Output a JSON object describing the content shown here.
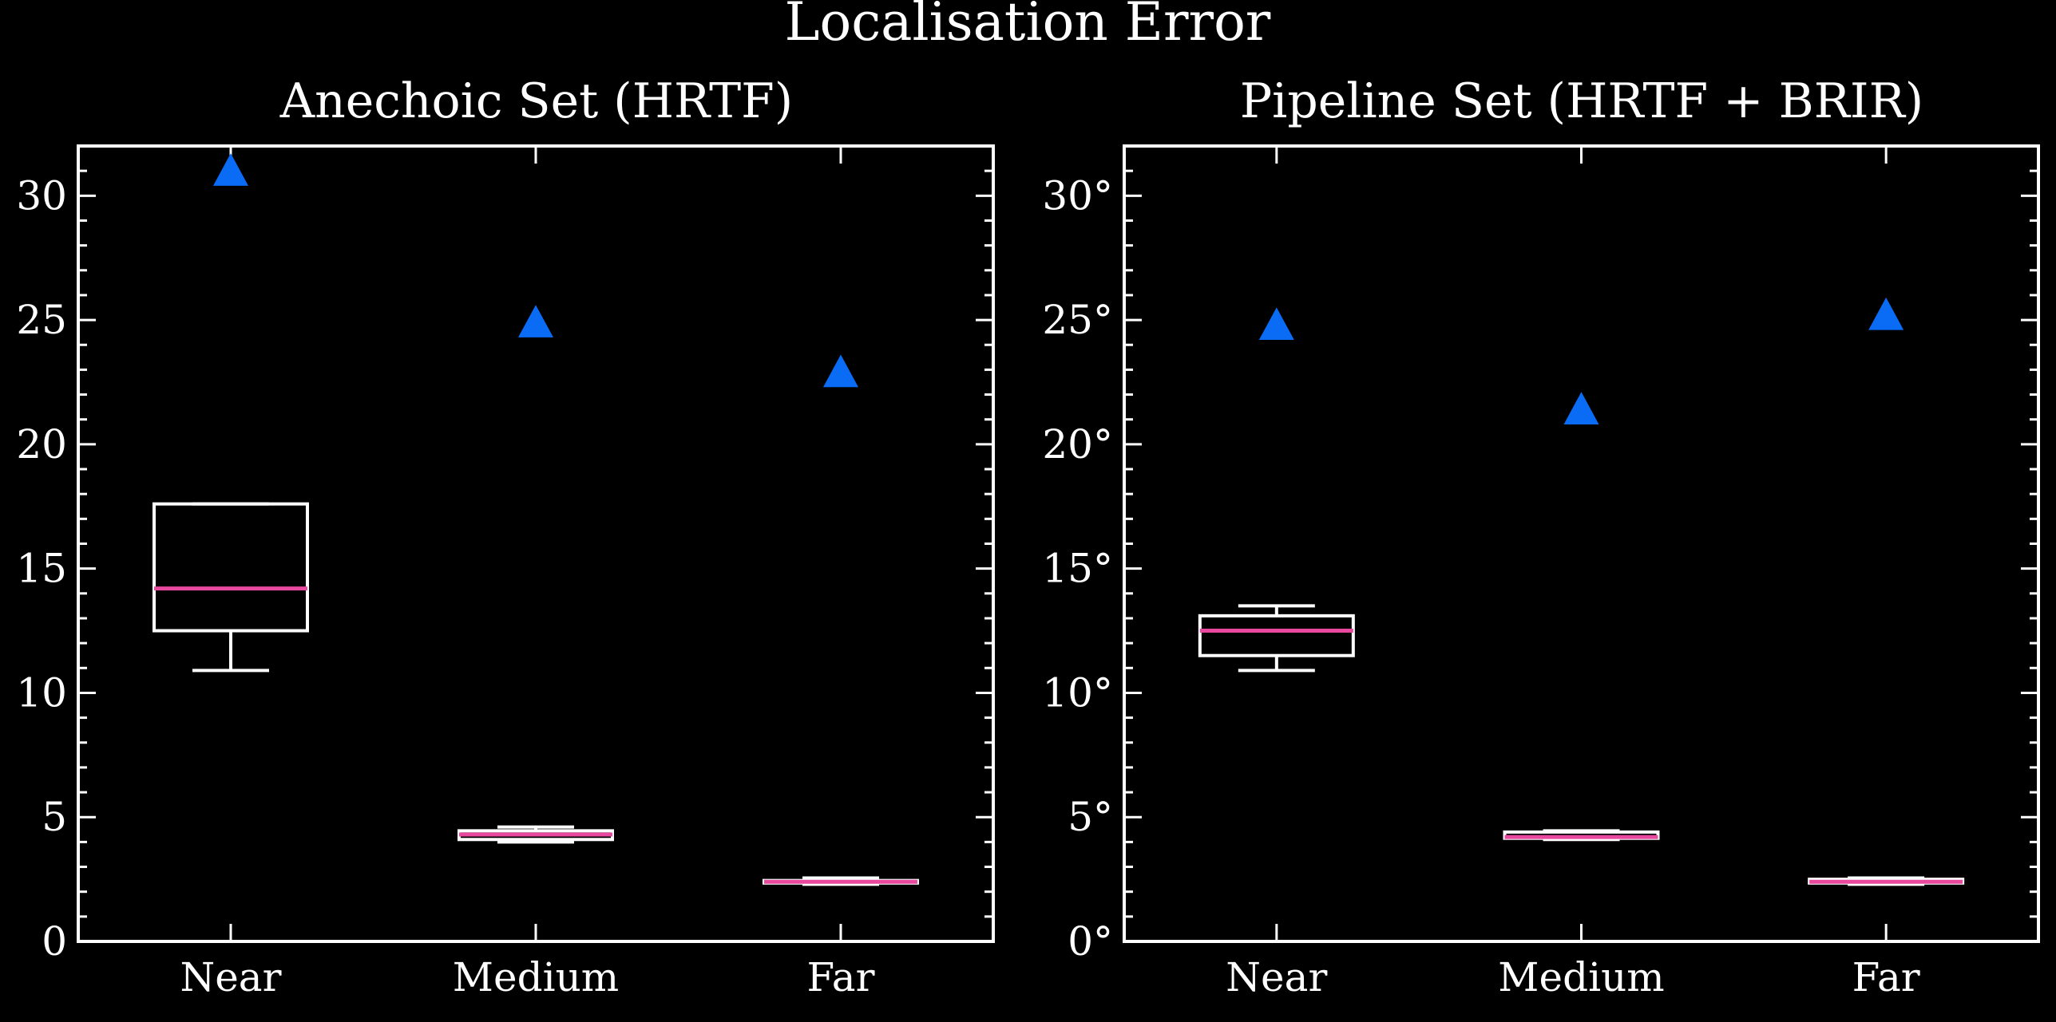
{
  "figure": {
    "title": "Localisation Error",
    "background": "#000000",
    "foreground": "#ffffff",
    "median_color": "#e8489e",
    "marker_color": "#0a6cf5"
  },
  "chart_data": [
    {
      "type": "box",
      "title": "Anechoic Set (HRTF)",
      "xlabel": "",
      "ylabel": "",
      "categories": [
        "Near",
        "Medium",
        "Far"
      ],
      "ylim": [
        0,
        32
      ],
      "yticks": [
        0,
        5,
        10,
        15,
        20,
        25,
        30
      ],
      "ytick_labels": [
        "0",
        "5",
        "10",
        "15",
        "20",
        "25",
        "30"
      ],
      "boxes": [
        {
          "whisker_low": 10.9,
          "q1": 12.5,
          "median": 14.2,
          "q3": 17.6,
          "whisker_high": 17.6
        },
        {
          "whisker_low": 4.0,
          "q1": 4.1,
          "median": 4.3,
          "q3": 4.45,
          "whisker_high": 4.6
        },
        {
          "whisker_low": 2.3,
          "q1": 2.35,
          "median": 2.4,
          "q3": 2.45,
          "whisker_high": 2.55
        }
      ],
      "markers": {
        "shape": "triangle",
        "values": [
          31.0,
          24.9,
          22.9
        ]
      },
      "grid": false
    },
    {
      "type": "box",
      "title": "Pipeline Set (HRTF + BRIR)",
      "xlabel": "",
      "ylabel": "",
      "categories": [
        "Near",
        "Medium",
        "Far"
      ],
      "ylim": [
        0,
        32
      ],
      "yticks": [
        0,
        5,
        10,
        15,
        20,
        25,
        30
      ],
      "ytick_labels": [
        "0°",
        "5°",
        "10°",
        "15°",
        "20°",
        "25°",
        "30°"
      ],
      "boxes": [
        {
          "whisker_low": 10.9,
          "q1": 11.5,
          "median": 12.5,
          "q3": 13.1,
          "whisker_high": 13.5
        },
        {
          "whisker_low": 4.1,
          "q1": 4.15,
          "median": 4.2,
          "q3": 4.4,
          "whisker_high": 4.45
        },
        {
          "whisker_low": 2.3,
          "q1": 2.35,
          "median": 2.4,
          "q3": 2.5,
          "whisker_high": 2.55
        }
      ],
      "markers": {
        "shape": "triangle",
        "values": [
          24.8,
          21.4,
          25.2
        ]
      },
      "grid": false
    }
  ]
}
